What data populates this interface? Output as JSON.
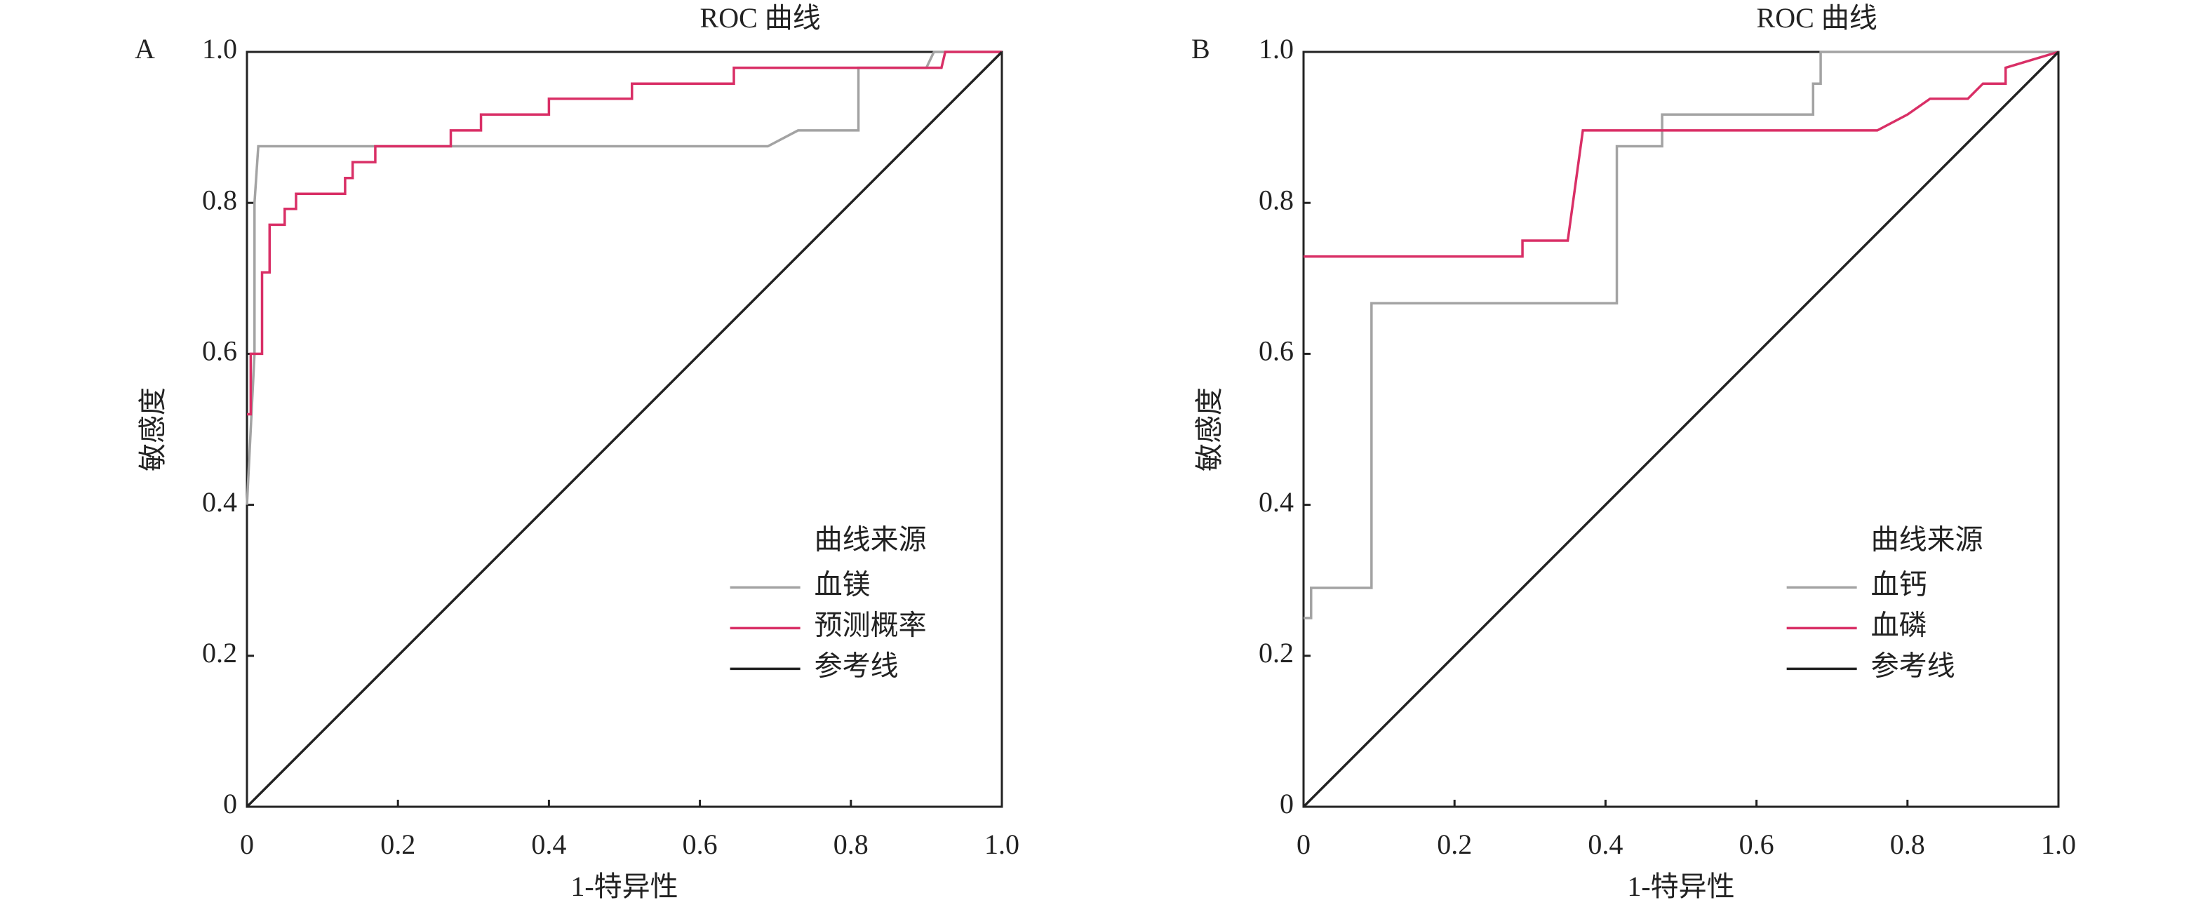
{
  "chart_data": [
    {
      "type": "line",
      "panel_label": "A",
      "title": "ROC 曲线",
      "xlabel": "1-特异性",
      "ylabel": "敏感度",
      "legend_title": "曲线来源",
      "legend": "lower right",
      "xlim": [
        0,
        1
      ],
      "ylim": [
        0,
        1
      ],
      "xticks": [
        0,
        0.2,
        0.4,
        0.6,
        0.8,
        {
          "value": 1,
          "label": "1.0"
        }
      ],
      "yticks": [
        0,
        0.2,
        0.4,
        0.6,
        0.8,
        {
          "value": 1,
          "label": "1.0"
        }
      ],
      "series": [
        {
          "name": "血镁",
          "color": "#a3a3a3",
          "x": [
            0,
            0.005,
            0.01,
            0.01,
            0.015,
            0.69,
            0.73,
            0.81,
            0.81,
            0.9,
            0.91,
            1
          ],
          "values": [
            0.4,
            0.5,
            0.6,
            0.8,
            0.875,
            0.875,
            0.896,
            0.896,
            0.979,
            0.979,
            1,
            1
          ]
        },
        {
          "name": "预测概率",
          "color": "#d92f66",
          "x": [
            0,
            0.005,
            0.005,
            0.02,
            0.02,
            0.03,
            0.03,
            0.05,
            0.05,
            0.065,
            0.065,
            0.13,
            0.13,
            0.14,
            0.14,
            0.17,
            0.17,
            0.27,
            0.27,
            0.31,
            0.31,
            0.4,
            0.4,
            0.51,
            0.51,
            0.645,
            0.645,
            0.92,
            0.925,
            1
          ],
          "values": [
            0.52,
            0.52,
            0.6,
            0.6,
            0.708,
            0.708,
            0.771,
            0.771,
            0.792,
            0.792,
            0.812,
            0.812,
            0.833,
            0.833,
            0.854,
            0.854,
            0.875,
            0.875,
            0.896,
            0.896,
            0.917,
            0.917,
            0.938,
            0.938,
            0.958,
            0.958,
            0.979,
            0.979,
            1,
            1
          ]
        },
        {
          "name": "参考线",
          "color": "#222222",
          "x": [
            0,
            1
          ],
          "values": [
            0,
            1
          ]
        }
      ]
    },
    {
      "type": "line",
      "panel_label": "B",
      "title": "ROC 曲线",
      "xlabel": "1-特异性",
      "ylabel": "敏感度",
      "legend_title": "曲线来源",
      "legend": "lower right",
      "xlim": [
        0,
        1
      ],
      "ylim": [
        0,
        1
      ],
      "xticks": [
        0,
        0.2,
        0.4,
        0.6,
        0.8,
        {
          "value": 1,
          "label": "1.0"
        }
      ],
      "yticks": [
        0,
        0.2,
        0.4,
        0.6,
        0.8,
        {
          "value": 1,
          "label": "1.0"
        }
      ],
      "series": [
        {
          "name": "血钙",
          "color": "#a3a3a3",
          "x": [
            0,
            0.01,
            0.01,
            0.09,
            0.09,
            0.415,
            0.415,
            0.475,
            0.475,
            0.675,
            0.675,
            0.685,
            0.685,
            1
          ],
          "values": [
            0.25,
            0.25,
            0.29,
            0.29,
            0.667,
            0.667,
            0.875,
            0.875,
            0.917,
            0.917,
            0.958,
            0.958,
            1,
            1
          ]
        },
        {
          "name": "血磷",
          "color": "#d92f66",
          "x": [
            0,
            0.29,
            0.29,
            0.35,
            0.37,
            0.76,
            0.8,
            0.83,
            0.88,
            0.9,
            0.93,
            0.93,
            1
          ],
          "values": [
            0.729,
            0.729,
            0.75,
            0.75,
            0.896,
            0.896,
            0.917,
            0.938,
            0.938,
            0.958,
            0.958,
            0.979,
            1
          ]
        },
        {
          "name": "参考线",
          "color": "#222222",
          "x": [
            0,
            1
          ],
          "values": [
            0,
            1
          ]
        }
      ]
    }
  ]
}
